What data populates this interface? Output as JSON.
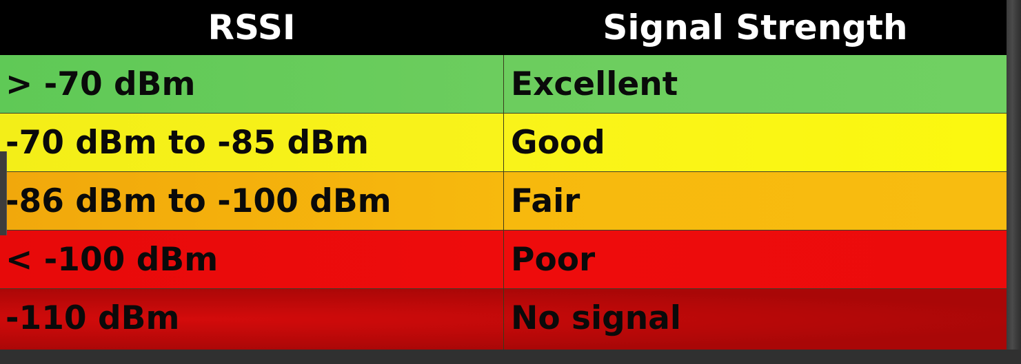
{
  "table": {
    "headers": [
      "RSSI",
      "Signal Strength"
    ],
    "rows": [
      {
        "rssi": "> -70 dBm",
        "strength": "Excellent",
        "color": "#6ccb5f"
      },
      {
        "rssi": "-70 dBm to -85 dBm",
        "strength": "Good",
        "color": "#f8f214"
      },
      {
        "rssi": "-86 dBm to -100 dBm",
        "strength": "Fair",
        "color": "#f6b50d"
      },
      {
        "rssi": "< -100 dBm",
        "strength": "Poor",
        "color": "#ec0b0b"
      },
      {
        "rssi": "-110 dBm",
        "strength": "No signal",
        "color": "#b30808"
      }
    ]
  }
}
